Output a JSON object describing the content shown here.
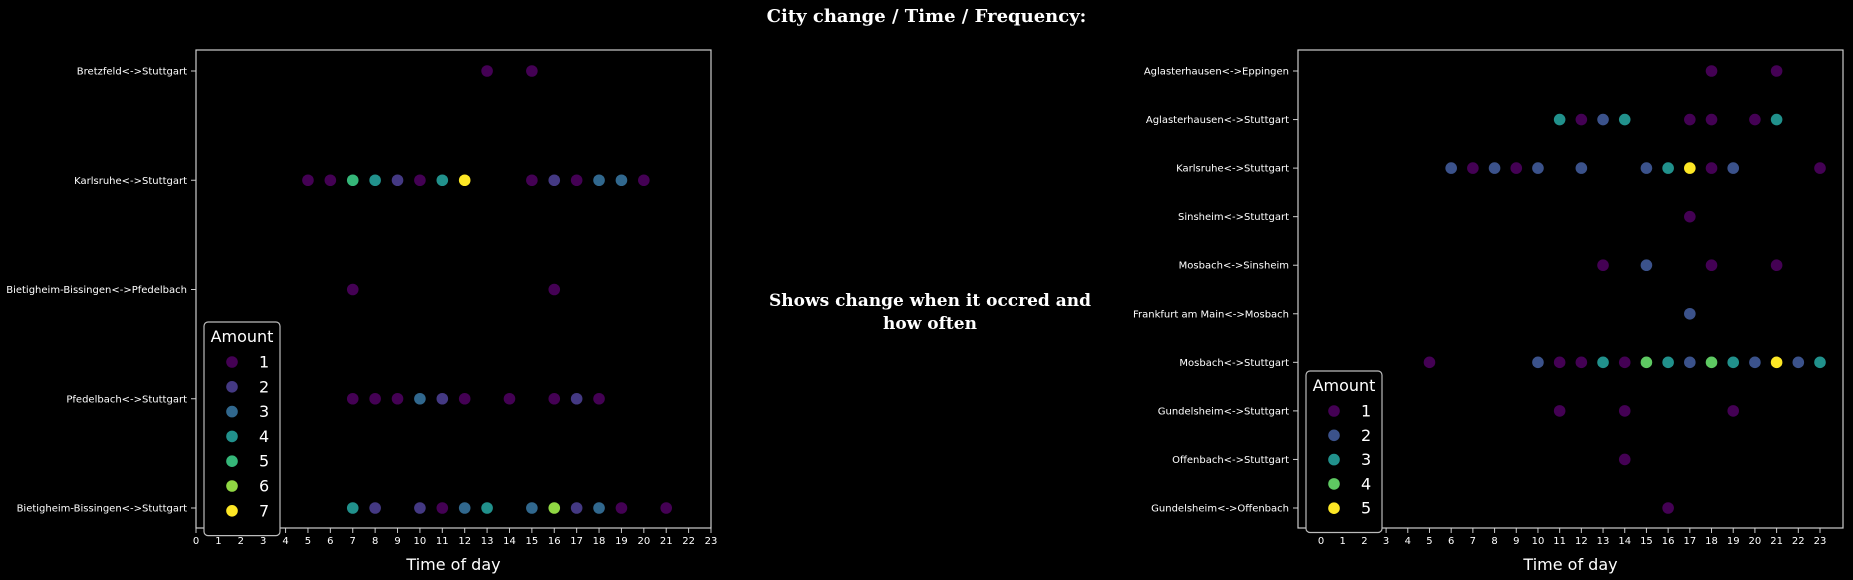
{
  "suptitle": "City change / Time / Frequency:",
  "note": "Shows change when it occred and how often",
  "colors": {
    "background": "#000000",
    "frame": "#cccccc",
    "text": "#ffffff",
    "viridis7": [
      "#440154",
      "#443983",
      "#31688e",
      "#21918c",
      "#35b779",
      "#90d743",
      "#fde725"
    ],
    "viridis5": [
      "#440154",
      "#3b528b",
      "#21918c",
      "#5ec962",
      "#fde725"
    ]
  },
  "chart_data": [
    {
      "type": "scatter",
      "xlabel": "Time of day",
      "xlim": [
        0,
        23
      ],
      "xticks": [
        0,
        1,
        2,
        3,
        4,
        5,
        6,
        7,
        8,
        9,
        10,
        11,
        12,
        13,
        14,
        15,
        16,
        17,
        18,
        19,
        20,
        21,
        22,
        23
      ],
      "categories": [
        "Bretzfeld<->Stuttgart",
        "Karlsruhe<->Stuttgart",
        "Bietigheim-Bissingen<->Pfedelbach",
        "Pfedelbach<->Stuttgart",
        "Bietigheim-Bissingen<->Stuttgart"
      ],
      "legend": {
        "title": "Amount",
        "placement": "lower-left",
        "labels": [
          "1",
          "2",
          "3",
          "4",
          "5",
          "6",
          "7"
        ]
      },
      "points": [
        {
          "route": "Bretzfeld<->Stuttgart",
          "hour": 13,
          "amount": 1
        },
        {
          "route": "Bretzfeld<->Stuttgart",
          "hour": 15,
          "amount": 1
        },
        {
          "route": "Karlsruhe<->Stuttgart",
          "hour": 5,
          "amount": 1
        },
        {
          "route": "Karlsruhe<->Stuttgart",
          "hour": 6,
          "amount": 1
        },
        {
          "route": "Karlsruhe<->Stuttgart",
          "hour": 7,
          "amount": 5
        },
        {
          "route": "Karlsruhe<->Stuttgart",
          "hour": 8,
          "amount": 4
        },
        {
          "route": "Karlsruhe<->Stuttgart",
          "hour": 9,
          "amount": 2
        },
        {
          "route": "Karlsruhe<->Stuttgart",
          "hour": 10,
          "amount": 1
        },
        {
          "route": "Karlsruhe<->Stuttgart",
          "hour": 11,
          "amount": 4
        },
        {
          "route": "Karlsruhe<->Stuttgart",
          "hour": 12,
          "amount": 7
        },
        {
          "route": "Karlsruhe<->Stuttgart",
          "hour": 15,
          "amount": 1
        },
        {
          "route": "Karlsruhe<->Stuttgart",
          "hour": 16,
          "amount": 2
        },
        {
          "route": "Karlsruhe<->Stuttgart",
          "hour": 17,
          "amount": 1
        },
        {
          "route": "Karlsruhe<->Stuttgart",
          "hour": 18,
          "amount": 3
        },
        {
          "route": "Karlsruhe<->Stuttgart",
          "hour": 19,
          "amount": 3
        },
        {
          "route": "Karlsruhe<->Stuttgart",
          "hour": 20,
          "amount": 1
        },
        {
          "route": "Bietigheim-Bissingen<->Pfedelbach",
          "hour": 7,
          "amount": 1
        },
        {
          "route": "Bietigheim-Bissingen<->Pfedelbach",
          "hour": 16,
          "amount": 1
        },
        {
          "route": "Pfedelbach<->Stuttgart",
          "hour": 7,
          "amount": 1
        },
        {
          "route": "Pfedelbach<->Stuttgart",
          "hour": 8,
          "amount": 1
        },
        {
          "route": "Pfedelbach<->Stuttgart",
          "hour": 9,
          "amount": 1
        },
        {
          "route": "Pfedelbach<->Stuttgart",
          "hour": 10,
          "amount": 3
        },
        {
          "route": "Pfedelbach<->Stuttgart",
          "hour": 11,
          "amount": 2
        },
        {
          "route": "Pfedelbach<->Stuttgart",
          "hour": 12,
          "amount": 1
        },
        {
          "route": "Pfedelbach<->Stuttgart",
          "hour": 14,
          "amount": 1
        },
        {
          "route": "Pfedelbach<->Stuttgart",
          "hour": 16,
          "amount": 1
        },
        {
          "route": "Pfedelbach<->Stuttgart",
          "hour": 17,
          "amount": 2
        },
        {
          "route": "Pfedelbach<->Stuttgart",
          "hour": 18,
          "amount": 1
        },
        {
          "route": "Bietigheim-Bissingen<->Stuttgart",
          "hour": 7,
          "amount": 4
        },
        {
          "route": "Bietigheim-Bissingen<->Stuttgart",
          "hour": 8,
          "amount": 2
        },
        {
          "route": "Bietigheim-Bissingen<->Stuttgart",
          "hour": 10,
          "amount": 2
        },
        {
          "route": "Bietigheim-Bissingen<->Stuttgart",
          "hour": 11,
          "amount": 1
        },
        {
          "route": "Bietigheim-Bissingen<->Stuttgart",
          "hour": 12,
          "amount": 3
        },
        {
          "route": "Bietigheim-Bissingen<->Stuttgart",
          "hour": 13,
          "amount": 4
        },
        {
          "route": "Bietigheim-Bissingen<->Stuttgart",
          "hour": 15,
          "amount": 3
        },
        {
          "route": "Bietigheim-Bissingen<->Stuttgart",
          "hour": 16,
          "amount": 6
        },
        {
          "route": "Bietigheim-Bissingen<->Stuttgart",
          "hour": 17,
          "amount": 2
        },
        {
          "route": "Bietigheim-Bissingen<->Stuttgart",
          "hour": 18,
          "amount": 3
        },
        {
          "route": "Bietigheim-Bissingen<->Stuttgart",
          "hour": 19,
          "amount": 1
        },
        {
          "route": "Bietigheim-Bissingen<->Stuttgart",
          "hour": 21,
          "amount": 1
        }
      ]
    },
    {
      "type": "scatter",
      "xlabel": "Time of day",
      "xlim": [
        0,
        23
      ],
      "xticks": [
        0,
        1,
        2,
        3,
        4,
        5,
        6,
        7,
        8,
        9,
        10,
        11,
        12,
        13,
        14,
        15,
        16,
        17,
        18,
        19,
        20,
        21,
        22,
        23
      ],
      "categories": [
        "Aglasterhausen<->Eppingen",
        "Aglasterhausen<->Stuttgart",
        "Karlsruhe<->Stuttgart",
        "Sinsheim<->Stuttgart",
        "Mosbach<->Sinsheim",
        "Frankfurt am Main<->Mosbach",
        "Mosbach<->Stuttgart",
        "Gundelsheim<->Stuttgart",
        "Offenbach<->Stuttgart",
        "Gundelsheim<->Offenbach"
      ],
      "legend": {
        "title": "Amount",
        "placement": "lower-left",
        "labels": [
          "1",
          "2",
          "3",
          "4",
          "5"
        ]
      },
      "points": [
        {
          "route": "Aglasterhausen<->Eppingen",
          "hour": 18,
          "amount": 1
        },
        {
          "route": "Aglasterhausen<->Eppingen",
          "hour": 21,
          "amount": 1
        },
        {
          "route": "Aglasterhausen<->Stuttgart",
          "hour": 11,
          "amount": 3
        },
        {
          "route": "Aglasterhausen<->Stuttgart",
          "hour": 12,
          "amount": 1
        },
        {
          "route": "Aglasterhausen<->Stuttgart",
          "hour": 13,
          "amount": 2
        },
        {
          "route": "Aglasterhausen<->Stuttgart",
          "hour": 14,
          "amount": 3
        },
        {
          "route": "Aglasterhausen<->Stuttgart",
          "hour": 17,
          "amount": 1
        },
        {
          "route": "Aglasterhausen<->Stuttgart",
          "hour": 18,
          "amount": 1
        },
        {
          "route": "Aglasterhausen<->Stuttgart",
          "hour": 20,
          "amount": 1
        },
        {
          "route": "Aglasterhausen<->Stuttgart",
          "hour": 21,
          "amount": 3
        },
        {
          "route": "Karlsruhe<->Stuttgart",
          "hour": 6,
          "amount": 2
        },
        {
          "route": "Karlsruhe<->Stuttgart",
          "hour": 7,
          "amount": 1
        },
        {
          "route": "Karlsruhe<->Stuttgart",
          "hour": 8,
          "amount": 2
        },
        {
          "route": "Karlsruhe<->Stuttgart",
          "hour": 9,
          "amount": 1
        },
        {
          "route": "Karlsruhe<->Stuttgart",
          "hour": 10,
          "amount": 2
        },
        {
          "route": "Karlsruhe<->Stuttgart",
          "hour": 12,
          "amount": 2
        },
        {
          "route": "Karlsruhe<->Stuttgart",
          "hour": 15,
          "amount": 2
        },
        {
          "route": "Karlsruhe<->Stuttgart",
          "hour": 16,
          "amount": 3
        },
        {
          "route": "Karlsruhe<->Stuttgart",
          "hour": 17,
          "amount": 5
        },
        {
          "route": "Karlsruhe<->Stuttgart",
          "hour": 18,
          "amount": 1
        },
        {
          "route": "Karlsruhe<->Stuttgart",
          "hour": 19,
          "amount": 2
        },
        {
          "route": "Karlsruhe<->Stuttgart",
          "hour": 23,
          "amount": 1
        },
        {
          "route": "Sinsheim<->Stuttgart",
          "hour": 17,
          "amount": 1
        },
        {
          "route": "Mosbach<->Sinsheim",
          "hour": 13,
          "amount": 1
        },
        {
          "route": "Mosbach<->Sinsheim",
          "hour": 15,
          "amount": 2
        },
        {
          "route": "Mosbach<->Sinsheim",
          "hour": 18,
          "amount": 1
        },
        {
          "route": "Mosbach<->Sinsheim",
          "hour": 21,
          "amount": 1
        },
        {
          "route": "Frankfurt am Main<->Mosbach",
          "hour": 17,
          "amount": 2
        },
        {
          "route": "Mosbach<->Stuttgart",
          "hour": 5,
          "amount": 1
        },
        {
          "route": "Mosbach<->Stuttgart",
          "hour": 10,
          "amount": 2
        },
        {
          "route": "Mosbach<->Stuttgart",
          "hour": 11,
          "amount": 1
        },
        {
          "route": "Mosbach<->Stuttgart",
          "hour": 12,
          "amount": 1
        },
        {
          "route": "Mosbach<->Stuttgart",
          "hour": 13,
          "amount": 3
        },
        {
          "route": "Mosbach<->Stuttgart",
          "hour": 14,
          "amount": 1
        },
        {
          "route": "Mosbach<->Stuttgart",
          "hour": 15,
          "amount": 4
        },
        {
          "route": "Mosbach<->Stuttgart",
          "hour": 16,
          "amount": 3
        },
        {
          "route": "Mosbach<->Stuttgart",
          "hour": 17,
          "amount": 2
        },
        {
          "route": "Mosbach<->Stuttgart",
          "hour": 18,
          "amount": 4
        },
        {
          "route": "Mosbach<->Stuttgart",
          "hour": 19,
          "amount": 3
        },
        {
          "route": "Mosbach<->Stuttgart",
          "hour": 20,
          "amount": 2
        },
        {
          "route": "Mosbach<->Stuttgart",
          "hour": 21,
          "amount": 5
        },
        {
          "route": "Mosbach<->Stuttgart",
          "hour": 22,
          "amount": 2
        },
        {
          "route": "Mosbach<->Stuttgart",
          "hour": 23,
          "amount": 3
        },
        {
          "route": "Gundelsheim<->Stuttgart",
          "hour": 11,
          "amount": 1
        },
        {
          "route": "Gundelsheim<->Stuttgart",
          "hour": 14,
          "amount": 1
        },
        {
          "route": "Gundelsheim<->Stuttgart",
          "hour": 19,
          "amount": 1
        },
        {
          "route": "Offenbach<->Stuttgart",
          "hour": 14,
          "amount": 1
        },
        {
          "route": "Gundelsheim<->Offenbach",
          "hour": 16,
          "amount": 1
        }
      ]
    }
  ]
}
